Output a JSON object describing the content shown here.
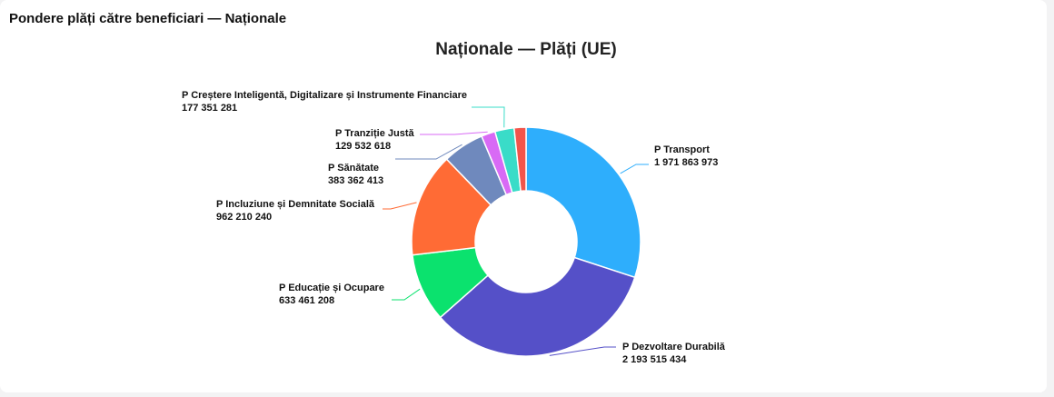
{
  "header": {
    "title": "Pondere plăți către beneficiari — Naționale"
  },
  "chart_data": {
    "type": "donut",
    "title": "Naționale — Plăți (UE)",
    "categories": [
      "P Transport",
      "P Dezvoltare Durabilă",
      "P Educație și Ocupare",
      "P Incluziune și Demnitate Socială",
      "P Sănătate",
      "P Tranziție Justă",
      "P Creștere Inteligentă, Digitalizare și Instrumente Financiare",
      null
    ],
    "values": [
      1971863973,
      2193515434,
      633461208,
      962210240,
      383362413,
      129532618,
      177351281,
      110000000
    ],
    "value_labels": [
      "1 971 863 973",
      "2 193 515 434",
      "633 461 208",
      "962 210 240",
      "383 362 413",
      "129 532 618",
      "177 351 281",
      null
    ],
    "colors": [
      "#2eaefc",
      "#5550c8",
      "#0be26e",
      "#ff6b35",
      "#6f89bd",
      "#d86af5",
      "#3adcc8",
      "#f2544b"
    ]
  }
}
